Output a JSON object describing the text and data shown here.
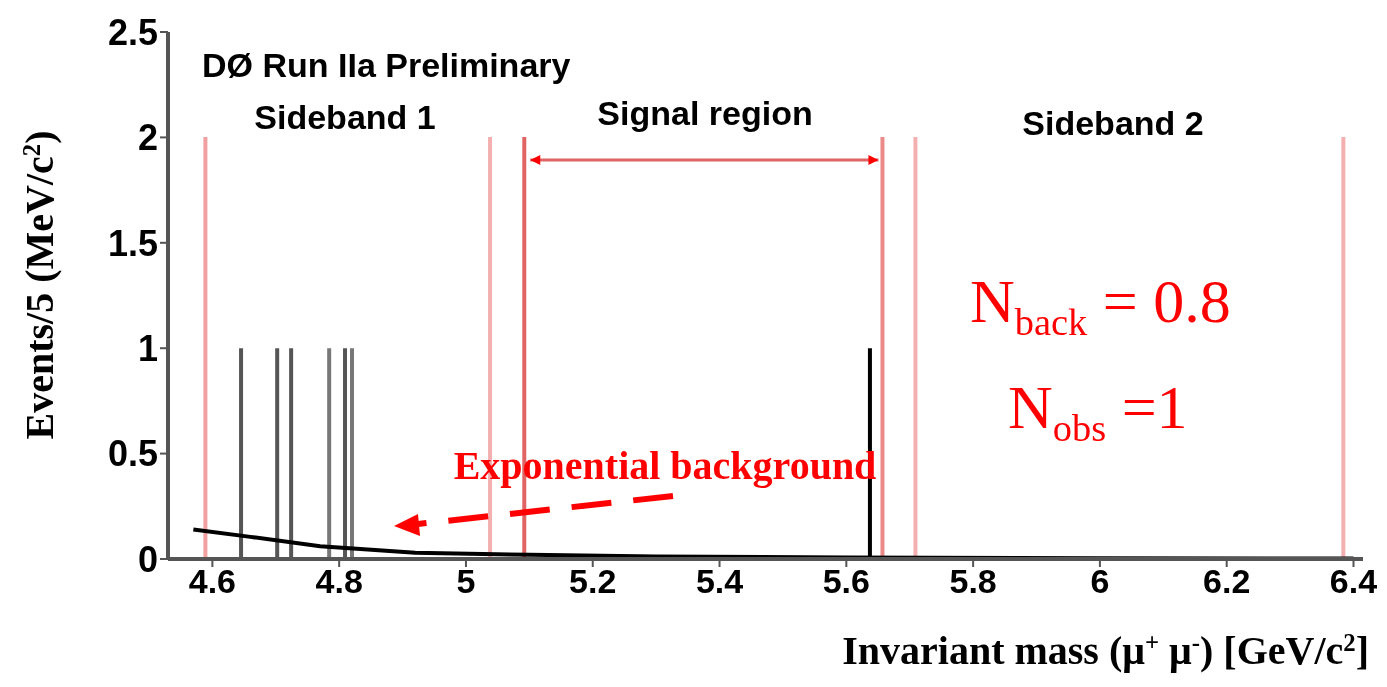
{
  "chart_data": {
    "type": "bar",
    "xlabel": "Invariant mass (μ$^{+}$ μ$^{-}$) [GeV/c$^{2}$]",
    "ylabel": "Events/5 (MeV/c$^{2}$)",
    "xlim": [
      4.53,
      6.415
    ],
    "xticks": [
      4.6,
      4.8,
      5,
      5.2,
      5.4,
      5.6,
      5.8,
      6,
      6.2,
      6.4
    ],
    "ylim": [
      0,
      2.5
    ],
    "yticks": [
      0,
      0.5,
      1,
      1.5,
      2,
      2.5
    ],
    "series": [
      {
        "x": [
          4.646,
          4.703,
          4.725,
          4.785,
          4.81,
          4.821,
          5.638
        ],
        "values": [
          1,
          1,
          1,
          1,
          1,
          1,
          1
        ],
        "colors": [
          "#555555",
          "#555555",
          "#555555",
          "#777777",
          "#555555",
          "#777777",
          "#000000"
        ]
      },
      {
        "type": "line",
        "name": null,
        "color": "#000000",
        "x": [
          4.57,
          4.66,
          4.77,
          4.92,
          5.1,
          5.3,
          5.6,
          6.0,
          6.4
        ],
        "values": [
          0.14,
          0.105,
          0.06,
          0.03,
          0.02,
          0.012,
          0.007,
          0.004,
          0.002
        ]
      }
    ],
    "ref_lines": [
      {
        "axis": "x",
        "value": 4.589,
        "color": "#f0a0a0"
      },
      {
        "axis": "x",
        "value": 5.038,
        "color": "#f4b0b0"
      },
      {
        "axis": "x",
        "value": 5.092,
        "color": "#e06464"
      },
      {
        "axis": "x",
        "value": 5.657,
        "color": "#ec8a8a"
      },
      {
        "axis": "x",
        "value": 5.709,
        "color": "#f4b0b0"
      },
      {
        "axis": "x",
        "value": 6.384,
        "color": "#f4b0b0"
      }
    ],
    "annotations": [
      "DØ Run IIa Preliminary",
      "Sideband 1",
      "Signal region",
      "Sideband 2",
      "Exponential background",
      "N$_{back}$ = 0.8",
      "N$_{obs}$ =1"
    ]
  }
}
